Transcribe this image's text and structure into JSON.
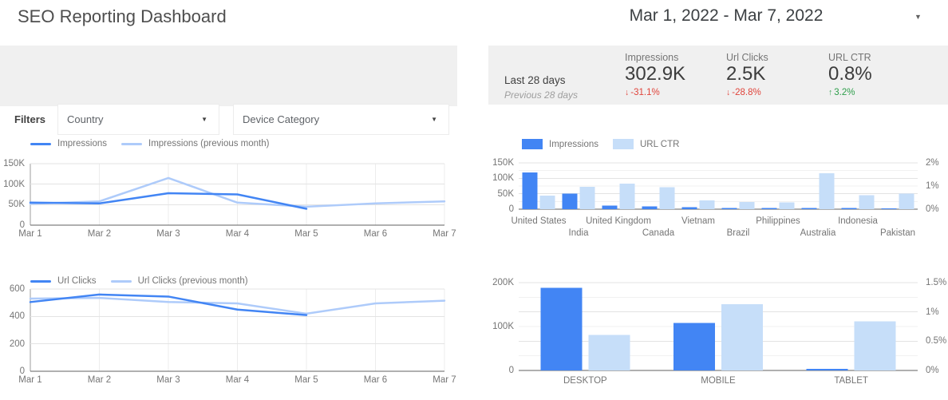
{
  "header": {
    "title": "SEO Reporting Dashboard",
    "date_range": "Mar 1, 2022 - Mar 7, 2022"
  },
  "icons": {
    "caret_down": "▼"
  },
  "filters": {
    "label": "Filters",
    "dropdowns": [
      {
        "label": "Country"
      },
      {
        "label": "Device Category"
      }
    ]
  },
  "scorecard": {
    "period_label": "Last 28 days",
    "comparison_label": "Previous 28 days",
    "metrics": [
      {
        "name": "Impressions",
        "value": "302.9K",
        "delta": "-31.1%",
        "direction": "down",
        "arrow": "↓"
      },
      {
        "name": "Url Clicks",
        "value": "2.5K",
        "delta": "-28.8%",
        "direction": "down",
        "arrow": "↓"
      },
      {
        "name": "URL CTR",
        "value": "0.8%",
        "delta": "3.2%",
        "direction": "up",
        "arrow": "↑"
      }
    ]
  },
  "colors": {
    "primary": "#4285f4",
    "secondary_line": "#aecbfa",
    "secondary_bar": "#c6def9",
    "negative": "#e0453c",
    "positive": "#2e9e4b",
    "panel_bg": "#f0f0f0",
    "grid_major": "#e3e3e3",
    "grid_minor": "#f1f1f1",
    "axis_line": "#616161",
    "yaxis_line": "#9e9e9e",
    "tick_text": "#757575"
  },
  "chart_data": [
    {
      "id": "impressions_trend",
      "type": "line",
      "title": "",
      "x": [
        "Mar 1",
        "Mar 2",
        "Mar 3",
        "Mar 4",
        "Mar 5",
        "Mar 6",
        "Mar 7"
      ],
      "series": [
        {
          "name": "Impressions",
          "palette": "primary",
          "values": [
            55000,
            53000,
            78000,
            75000,
            40000,
            null,
            null
          ]
        },
        {
          "name": "Impressions (previous month)",
          "palette": "secondary",
          "values": [
            52000,
            58000,
            115000,
            55000,
            45000,
            53000,
            58000
          ]
        }
      ],
      "ylim": [
        0,
        150000
      ],
      "yticks": [
        "150K",
        "100K",
        "50K",
        "0"
      ],
      "ytick_values": [
        150000,
        100000,
        50000,
        0
      ],
      "grid": true,
      "legend_position": "top"
    },
    {
      "id": "clicks_trend",
      "type": "line",
      "title": "",
      "x": [
        "Mar 1",
        "Mar 2",
        "Mar 3",
        "Mar 4",
        "Mar 5",
        "Mar 6",
        "Mar 7"
      ],
      "series": [
        {
          "name": "Url Clicks",
          "palette": "primary",
          "values": [
            505,
            560,
            545,
            450,
            410,
            null,
            null
          ]
        },
        {
          "name": "Url Clicks (previous month)",
          "palette": "secondary",
          "values": [
            530,
            535,
            505,
            495,
            420,
            495,
            515
          ]
        }
      ],
      "ylim": [
        0,
        600
      ],
      "yticks": [
        "600",
        "400",
        "200",
        "0"
      ],
      "ytick_values": [
        600,
        400,
        200,
        0
      ],
      "grid": true,
      "legend_position": "top"
    },
    {
      "id": "country_bars",
      "type": "bar",
      "title": "",
      "show_legend": true,
      "categories": [
        "United States",
        "India",
        "United Kingdom",
        "Canada",
        "Vietnam",
        "Brazil",
        "Philippines",
        "Australia",
        "Indonesia",
        "Pakistan"
      ],
      "series": [
        {
          "name": "Impressions",
          "palette": "primary",
          "axis": "left",
          "values": [
            119000,
            50000,
            11000,
            9000,
            6500,
            4000,
            4000,
            3500,
            3500,
            3000
          ]
        },
        {
          "name": "URL CTR",
          "palette": "secondary",
          "axis": "right",
          "values": [
            0.59,
            0.96,
            1.1,
            0.95,
            0.38,
            0.31,
            0.29,
            1.55,
            0.6,
            0.68
          ]
        }
      ],
      "ylim": [
        0,
        150000
      ],
      "yticks": [
        "150K",
        "100K",
        "50K",
        "0"
      ],
      "ytick_values": [
        150000,
        100000,
        50000,
        0
      ],
      "y2lim": [
        0,
        2
      ],
      "y2ticks": [
        "2%",
        "1%",
        "0%"
      ],
      "y2tick_values": [
        2,
        1,
        0
      ],
      "grid": true,
      "legend_position": "top"
    },
    {
      "id": "device_bars",
      "type": "bar",
      "title": "",
      "show_legend": false,
      "categories": [
        "DESKTOP",
        "MOBILE",
        "TABLET"
      ],
      "series": [
        {
          "name": "Impressions",
          "palette": "primary",
          "axis": "left",
          "values": [
            188000,
            108000,
            4000
          ]
        },
        {
          "name": "URL CTR",
          "palette": "secondary",
          "axis": "right",
          "values": [
            0.61,
            1.13,
            0.84
          ]
        }
      ],
      "ylim": [
        0,
        200000
      ],
      "yticks": [
        "200K",
        "100K",
        "0"
      ],
      "ytick_values": [
        200000,
        100000,
        0
      ],
      "y2lim": [
        0,
        1.5
      ],
      "y2ticks": [
        "1.5%",
        "1%",
        "0.5%",
        "0%"
      ],
      "y2tick_values": [
        1.5,
        1,
        0.5,
        0
      ],
      "grid": true,
      "legend_position": "none"
    }
  ]
}
